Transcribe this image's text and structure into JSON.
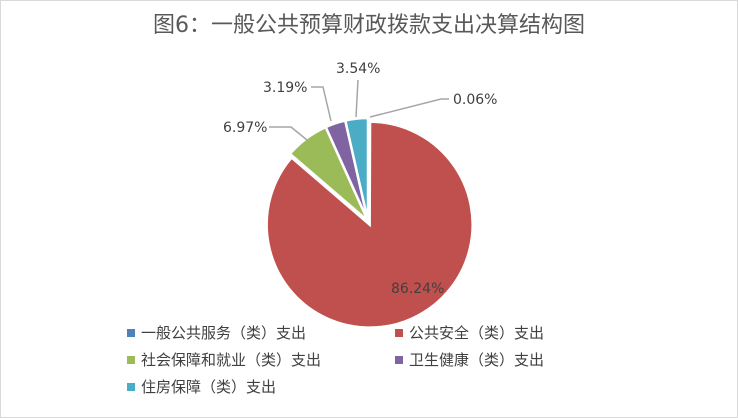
{
  "chart_data": {
    "type": "pie",
    "title": "图6：一般公共预算财政拨款支出决算结构图",
    "slices": [
      {
        "name": "一般公共服务（类）支出",
        "value": 0.06,
        "label": "0.06%",
        "color": "#4F81BD"
      },
      {
        "name": "公共安全（类）支出",
        "value": 86.24,
        "label": "86.24%",
        "color": "#C0504D"
      },
      {
        "name": "社会保障和就业（类）支出",
        "value": 6.97,
        "label": "6.97%",
        "color": "#9BBB59"
      },
      {
        "name": "卫生健康（类）支出",
        "value": 3.19,
        "label": "3.19%",
        "color": "#8064A2"
      },
      {
        "name": "住房保障（类）支出",
        "value": 3.54,
        "label": "3.54%",
        "color": "#4BACC6"
      }
    ],
    "start_angle": "12 o'clock",
    "direction": "clockwise",
    "legend_position": "bottom"
  }
}
